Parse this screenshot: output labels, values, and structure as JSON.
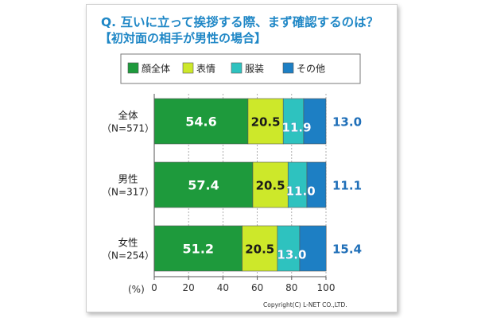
{
  "chart_data": {
    "type": "bar",
    "stacked": true,
    "orientation": "horizontal",
    "title": "Q. 互いに立って挨拶する際、まず確認するのは？",
    "subtitle": "【初対面の相手が男性の場合】",
    "categories": [
      {
        "label": "全体",
        "n": "（N=571）"
      },
      {
        "label": "男性",
        "n": "（N=317）"
      },
      {
        "label": "女性",
        "n": "（N=254）"
      }
    ],
    "series": [
      {
        "name": "顔全体",
        "color": "#1e9a3c",
        "values": [
          54.6,
          57.4,
          51.2
        ]
      },
      {
        "name": "表情",
        "color": "#cde82a",
        "values": [
          20.5,
          20.5,
          20.5
        ]
      },
      {
        "name": "服装",
        "color": "#2ec2bf",
        "values": [
          11.9,
          11.0,
          13.0
        ]
      },
      {
        "name": "その他",
        "color": "#1d7fc4",
        "values": [
          13.0,
          11.1,
          15.4
        ]
      }
    ],
    "xlabel": "(%)",
    "xlim": [
      0,
      100
    ],
    "xticks": [
      0,
      20,
      40,
      60,
      80,
      100
    ],
    "legend_position": "top",
    "copyright": "Copyright(C) L-NET CO.,LTD."
  }
}
